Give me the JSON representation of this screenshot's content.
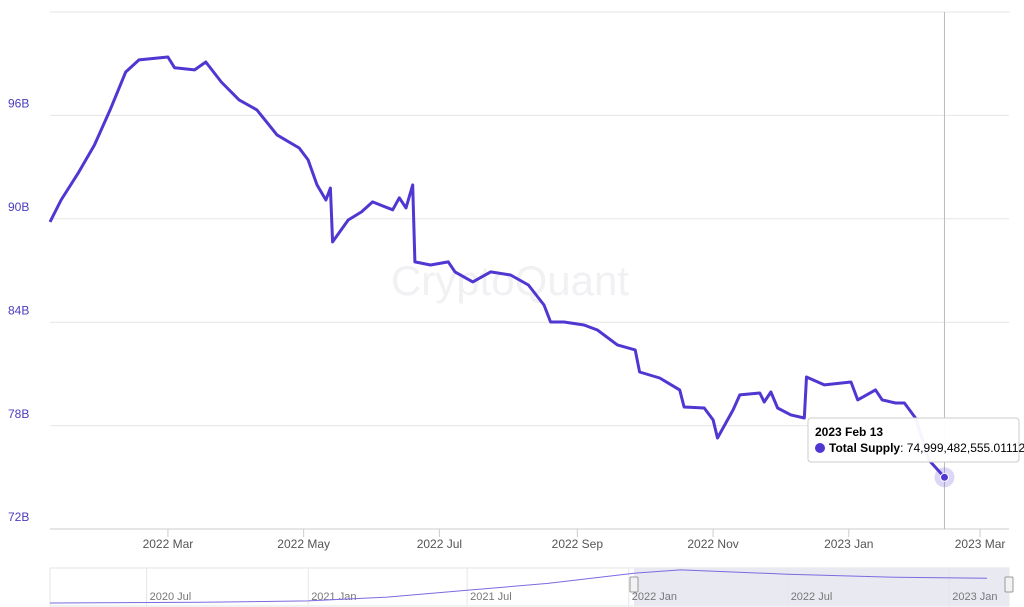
{
  "chart_data": {
    "type": "line",
    "watermark": "CryptoQuant",
    "x": [
      "2022-01-07",
      "2022-01-12",
      "2022-01-20",
      "2022-01-27",
      "2022-02-03",
      "2022-02-10",
      "2022-02-16",
      "2022-03-01",
      "2022-03-04",
      "2022-03-13",
      "2022-03-18",
      "2022-03-25",
      "2022-04-02",
      "2022-04-10",
      "2022-04-19",
      "2022-04-29",
      "2022-05-03",
      "2022-05-07",
      "2022-05-11",
      "2022-05-13",
      "2022-05-14",
      "2022-05-21",
      "2022-05-27",
      "2022-06-01",
      "2022-06-10",
      "2022-06-13",
      "2022-06-16",
      "2022-06-19",
      "2022-06-20",
      "2022-06-27",
      "2022-07-05",
      "2022-07-08",
      "2022-07-16",
      "2022-07-24",
      "2022-08-02",
      "2022-08-10",
      "2022-08-17",
      "2022-08-20",
      "2022-08-26",
      "2022-09-04",
      "2022-09-10",
      "2022-09-19",
      "2022-09-27",
      "2022-09-29",
      "2022-10-08",
      "2022-10-17",
      "2022-10-19",
      "2022-10-28",
      "2022-11-01",
      "2022-11-03",
      "2022-11-10",
      "2022-11-13",
      "2022-11-22",
      "2022-11-24",
      "2022-11-27",
      "2022-11-30",
      "2022-12-06",
      "2022-12-12",
      "2022-12-13",
      "2022-12-21",
      "2023-01-02",
      "2023-01-05",
      "2023-01-13",
      "2023-01-16",
      "2023-01-22",
      "2023-01-26",
      "2023-01-31",
      "2023-02-06",
      "2023-02-13"
    ],
    "series": [
      {
        "name": "Total Supply",
        "color": "#4f37d2",
        "values": [
          89820000000,
          91090000000,
          92720000000,
          94290000000,
          96320000000,
          98520000000,
          99220000000,
          99390000000,
          98760000000,
          98640000000,
          99100000000,
          97940000000,
          96900000000,
          96320000000,
          94870000000,
          94110000000,
          93420000000,
          91970000000,
          91090000000,
          91790000000,
          88660000000,
          89930000000,
          90400000000,
          90980000000,
          90520000000,
          91220000000,
          90630000000,
          91970000000,
          87500000000,
          87320000000,
          87500000000,
          86920000000,
          86340000000,
          86920000000,
          86740000000,
          86160000000,
          85000000000,
          84010000000,
          84010000000,
          83840000000,
          83550000000,
          82680000000,
          82390000000,
          81110000000,
          80760000000,
          80070000000,
          79080000000,
          79020000000,
          78330000000,
          77280000000,
          78910000000,
          79780000000,
          79890000000,
          79370000000,
          79950000000,
          79020000000,
          78620000000,
          78440000000,
          80820000000,
          80360000000,
          80530000000,
          79490000000,
          80070000000,
          79490000000,
          79310000000,
          79310000000,
          78440000000,
          76000000000,
          74999482555.01112
        ]
      }
    ],
    "xlim": [
      "2022-01-07",
      "2023-03-14"
    ],
    "xticks": [
      {
        "value": "2022-03-01",
        "label": "2022 Mar"
      },
      {
        "value": "2022-05-01",
        "label": "2022 May"
      },
      {
        "value": "2022-07-01",
        "label": "2022 Jul"
      },
      {
        "value": "2022-09-01",
        "label": "2022 Sep"
      },
      {
        "value": "2022-11-01",
        "label": "2022 Nov"
      },
      {
        "value": "2023-01-01",
        "label": "2023 Jan"
      },
      {
        "value": "2023-03-01",
        "label": "2023 Mar"
      }
    ],
    "ylim": [
      72000000000,
      102000000000
    ],
    "yticks": [
      {
        "value": 72000000000,
        "label": "72B"
      },
      {
        "value": 78000000000,
        "label": "78B"
      },
      {
        "value": 84000000000,
        "label": "84B"
      },
      {
        "value": 90000000000,
        "label": "90B"
      },
      {
        "value": 96000000000,
        "label": "96B"
      }
    ],
    "grid": true,
    "tooltip": {
      "date": "2023 Feb 13",
      "separator": ":",
      "value_label": "74,999,482,555.01112"
    },
    "navigator": {
      "x": [
        "2020-03-13",
        "2020-09-01",
        "2021-01-01",
        "2021-04-01",
        "2021-07-01",
        "2021-10-01",
        "2022-01-07",
        "2022-03-01",
        "2022-07-01",
        "2022-11-01",
        "2023-02-13"
      ],
      "values": [
        3000000000,
        5000000000,
        9000000000,
        20000000000,
        40000000000,
        60000000000,
        89820000000,
        99390000000,
        87000000000,
        78000000000,
        74999482555.01112
      ],
      "xlim": [
        "2020-03-13",
        "2023-03-10"
      ],
      "ylim": [
        0,
        105000000000
      ],
      "xticks": [
        {
          "value": "2020-07-01",
          "label": "2020 Jul"
        },
        {
          "value": "2021-01-01",
          "label": "2021 Jan"
        },
        {
          "value": "2021-07-01",
          "label": "2021 Jul"
        },
        {
          "value": "2022-01-01",
          "label": "2022 Jan"
        },
        {
          "value": "2022-07-01",
          "label": "2022 Jul"
        },
        {
          "value": "2023-01-01",
          "label": "2023 Jan"
        }
      ]
    }
  }
}
